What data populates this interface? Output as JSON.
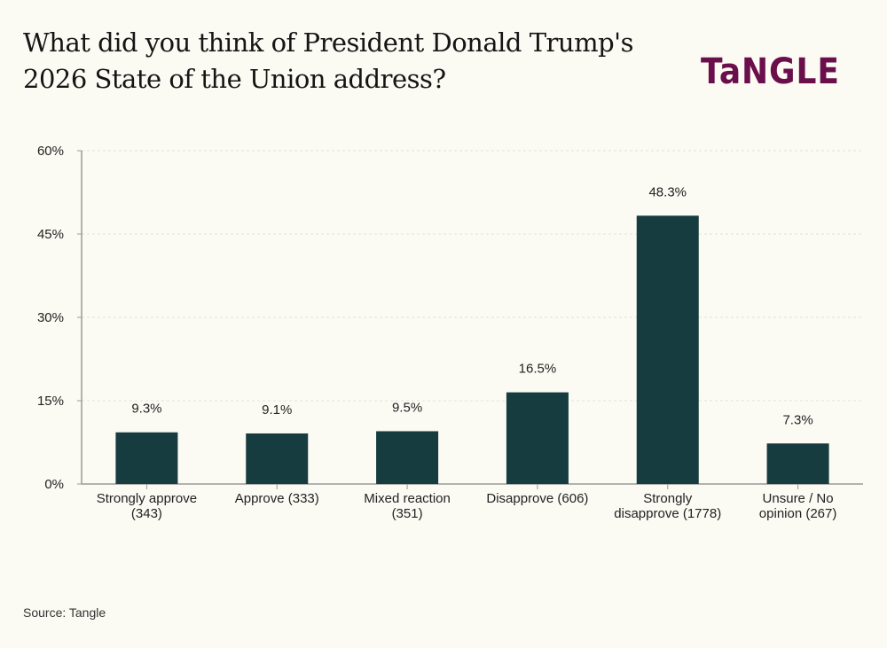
{
  "brand": {
    "logo_text": "TaNGLE",
    "color": "#6a0f4c"
  },
  "source": "Source: Tangle",
  "chart_data": {
    "type": "bar",
    "title": "What did you think of President Donald Trump's 2026 State of the Union address?",
    "title_lines": [
      "What did you think of President Donald Trump's",
      "2026 State of the Union address?"
    ],
    "xlabel": "",
    "ylabel": "",
    "categories": [
      [
        "Strongly approve",
        "(343)"
      ],
      [
        "Approve (333)"
      ],
      [
        "Mixed reaction",
        "(351)"
      ],
      [
        "Disapprove (606)"
      ],
      [
        "Strongly",
        "disapprove (1778)"
      ],
      [
        "Unsure / No",
        "opinion (267)"
      ]
    ],
    "values": [
      9.3,
      9.1,
      9.5,
      16.5,
      48.3,
      7.3
    ],
    "value_labels": [
      "9.3%",
      "9.1%",
      "9.5%",
      "16.5%",
      "48.3%",
      "7.3%"
    ],
    "ylim": [
      0,
      60
    ],
    "yticks": [
      0,
      15,
      30,
      45,
      60
    ],
    "ytick_labels": [
      "0%",
      "15%",
      "30%",
      "45%",
      "60%"
    ],
    "grid": true,
    "bar_color": "#173c3f"
  }
}
